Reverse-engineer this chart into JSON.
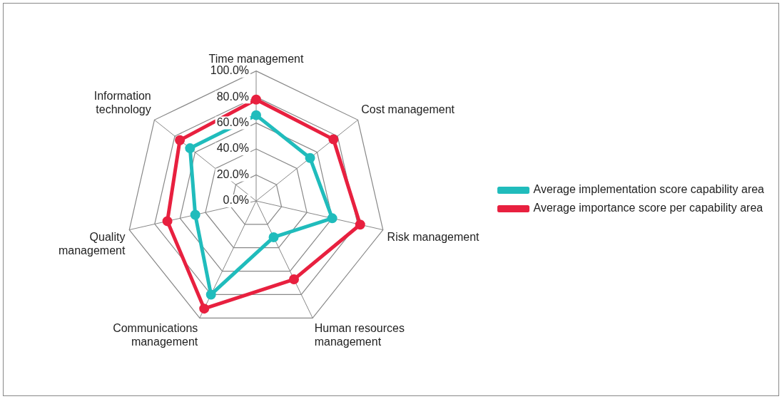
{
  "chart_data": {
    "type": "radar",
    "categories": [
      "Time management",
      "Cost management",
      "Risk management",
      "Human resources management",
      "Communications management",
      "Quality management",
      "Information technology"
    ],
    "series": [
      {
        "name": "Average implementation score capability area",
        "color": "#20bcbc",
        "values": [
          66,
          53,
          60,
          31,
          80,
          48,
          65
        ]
      },
      {
        "name": "Average importance score per capability area",
        "color": "#e8203f",
        "values": [
          78,
          76,
          82,
          67,
          92,
          70,
          75
        ]
      }
    ],
    "ylim": [
      0,
      100
    ],
    "yticks": [
      {
        "value": 0,
        "label": "0.0%"
      },
      {
        "value": 20,
        "label": "20.0%"
      },
      {
        "value": 40,
        "label": "40.0%"
      },
      {
        "value": 60,
        "label": "60.0%"
      },
      {
        "value": 80,
        "label": "80.0%"
      },
      {
        "value": 100,
        "label": "100.0%"
      }
    ],
    "legend": "right",
    "marker": "circle",
    "grid": true
  }
}
